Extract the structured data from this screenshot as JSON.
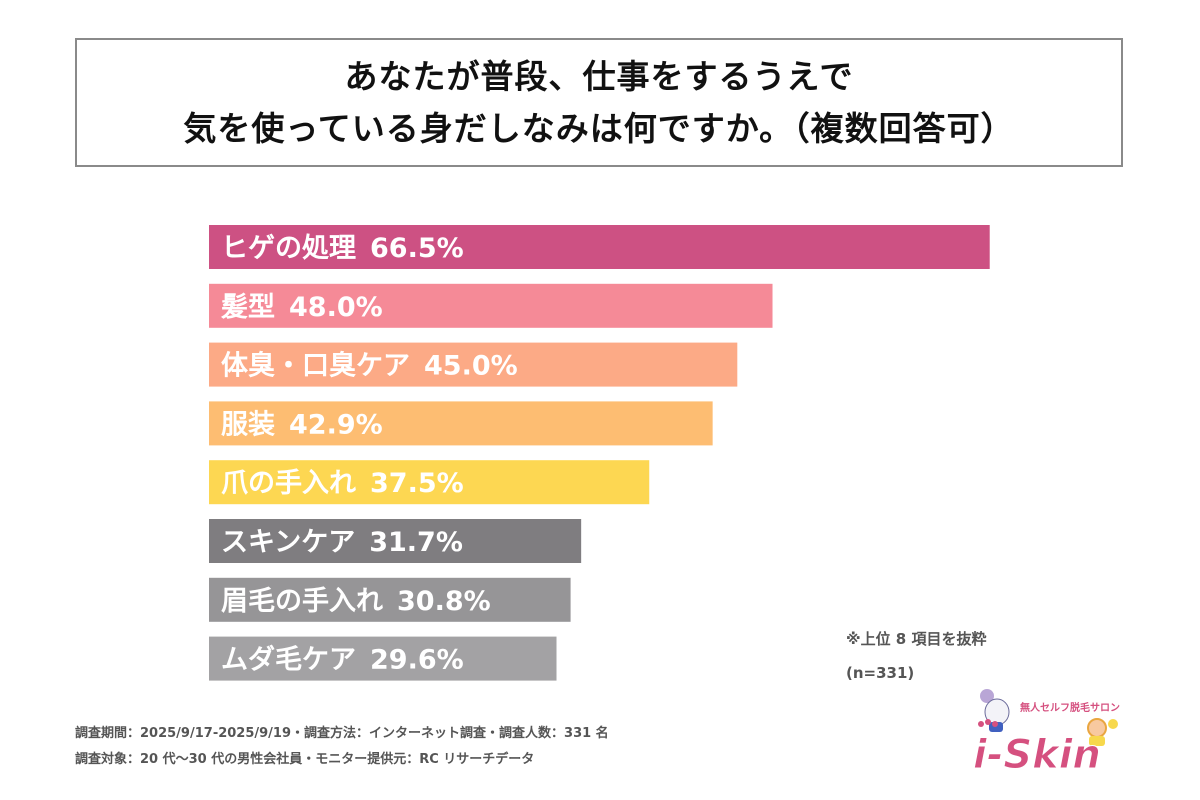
{
  "title": {
    "line1": "あなたが普段、仕事をするうえで",
    "line2": "気を使っている身だしなみは何ですか。（複数回答可）"
  },
  "chart_data": {
    "type": "bar",
    "orientation": "horizontal",
    "title": "あなたが普段、仕事をするうえで気を使っている身だしなみは何ですか。（複数回答可）",
    "categories": [
      "ヒゲの処理",
      "髪型",
      "体臭・口臭ケア",
      "服装",
      "爪の手入れ",
      "スキンケア",
      "眉毛の手入れ",
      "ムダ毛ケア"
    ],
    "values": [
      66.5,
      48.0,
      45.0,
      42.9,
      37.5,
      31.7,
      30.8,
      29.6
    ],
    "value_labels": [
      "66.5%",
      "48.0%",
      "45.0%",
      "42.9%",
      "37.5%",
      "31.7%",
      "30.8%",
      "29.6%"
    ],
    "colors": [
      "#cd5183",
      "#f58a97",
      "#fcaa86",
      "#fdbd72",
      "#fdd752",
      "#7f7d80",
      "#969597",
      "#a3a2a4"
    ],
    "unit": "%",
    "xlabel": "",
    "ylabel": "",
    "grid": false,
    "legend": "none"
  },
  "notes": {
    "top_items": "※上位 8 項目を抜粋",
    "sample": "(n=331)"
  },
  "footer": {
    "line1": "調査期間：2025/9/17-2025/9/19・調査方法：インターネット調査・調査人数：331 名",
    "line2": "調査対象：20 代～30 代の男性会社員・モニター提供元：RC リサーチデータ"
  },
  "logo": {
    "tagline": "無人セルフ脱毛サロン",
    "brand": "i-Skin",
    "color": "#d5507f"
  }
}
